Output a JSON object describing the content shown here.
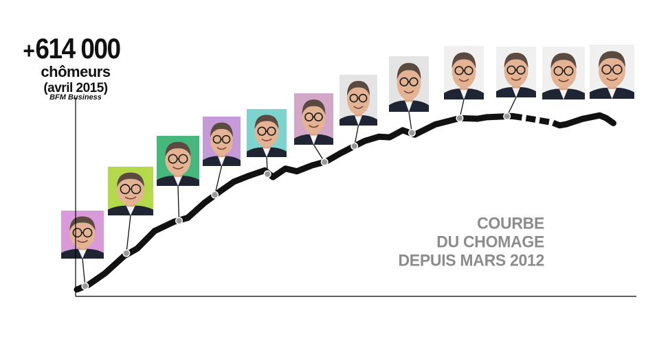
{
  "headline": {
    "plus": "+",
    "value": "614 000",
    "unit": "chômeurs",
    "date": "(avril 2015)",
    "source": "BFM Business"
  },
  "title_lines": [
    "COURBE",
    "DU CHOMAGE",
    "DEPUIS MARS 2012"
  ],
  "colors": {
    "curve": "#111111",
    "axis": "#000000",
    "marker": "#999999",
    "title": "#8c8c8c",
    "portrait_backgrounds": [
      "#d89ad9",
      "#b4d94a",
      "#46b87d",
      "#c69ad8",
      "#7dd4cf",
      "#d3a7c8",
      "#e4e4e4",
      "#e4e4e4",
      "#f0f0f0",
      "#f0f0f0",
      "#f0f0f0",
      "#f0f0f0"
    ]
  },
  "chart_data": {
    "type": "line",
    "title": "COURBE DU CHOMAGE DEPUIS MARS 2012",
    "x_range": [
      0,
      100
    ],
    "y_range": [
      0,
      100
    ],
    "grid": false,
    "series": [
      {
        "x": [
          0,
          2.1,
          5.2,
          8.7,
          11.1,
          14.3,
          17.9,
          20.4,
          23.5,
          26.3,
          28.9,
          31.7,
          34.6,
          36.1,
          38.4,
          40.5,
          43.3,
          45.9,
          48.5,
          51.1,
          53.0,
          55.6,
          57.6,
          60.0,
          62.2,
          66.0,
          70.5,
          73.8,
          75.4,
          77.7,
          80.2,
          83.0,
          85.6,
          87.5,
          88.9,
          90.2,
          93.1,
          96.3,
          97.5,
          98.8
        ],
        "y": [
          0,
          2.5,
          8.8,
          18.1,
          22.1,
          31.6,
          36.6,
          38.7,
          46.8,
          52.9,
          58.2,
          61.4,
          64.3,
          60.7,
          65.3,
          63.8,
          67.0,
          69.1,
          73.5,
          77.4,
          80.2,
          82.5,
          82.2,
          86.0,
          83.6,
          89.1,
          92.5,
          92.2,
          93.0,
          93.3,
          93.6,
          92.4,
          91.1,
          90.2,
          88.6,
          89.3,
          92.1,
          94.0,
          92.5,
          89.8
        ]
      }
    ],
    "segments": [
      {
        "style": "solid",
        "from_x": 0,
        "to_x": 80.2
      },
      {
        "style": "dashed",
        "from_x": 80.2,
        "to_x": 88.9
      },
      {
        "style": "solid",
        "from_x": 88.9,
        "to_x": 98.8
      }
    ],
    "markers": [
      {
        "x": 1.5,
        "y": 1.8
      },
      {
        "x": 9.1,
        "y": 19.6
      },
      {
        "x": 18.8,
        "y": 37.1
      },
      {
        "x": 25.4,
        "y": 51.1
      },
      {
        "x": 35.1,
        "y": 62.3
      },
      {
        "x": 45.6,
        "y": 68.8
      },
      {
        "x": 51.1,
        "y": 77.4
      },
      {
        "x": 61.7,
        "y": 84.6
      },
      {
        "x": 70.5,
        "y": 92.5
      },
      {
        "x": 79.2,
        "y": 93.5
      }
    ]
  },
  "portraits": [
    {
      "label": "hollande-portrait",
      "marker": 0
    },
    {
      "label": "hollande-portrait",
      "marker": 1
    },
    {
      "label": "hollande-portrait",
      "marker": 2
    },
    {
      "label": "hollande-portrait",
      "marker": 3
    },
    {
      "label": "hollande-portrait",
      "marker": 4
    },
    {
      "label": "hollande-portrait",
      "marker": 5
    },
    {
      "label": "hollande-portrait",
      "marker": 6
    },
    {
      "label": "hollande-portrait",
      "marker": 7
    },
    {
      "label": "hollande-portrait",
      "marker": 8
    },
    {
      "label": "hollande-portrait",
      "marker": 9
    },
    {
      "label": "hollande-portrait",
      "marker": null
    },
    {
      "label": "hollande-portrait",
      "marker": null
    }
  ]
}
